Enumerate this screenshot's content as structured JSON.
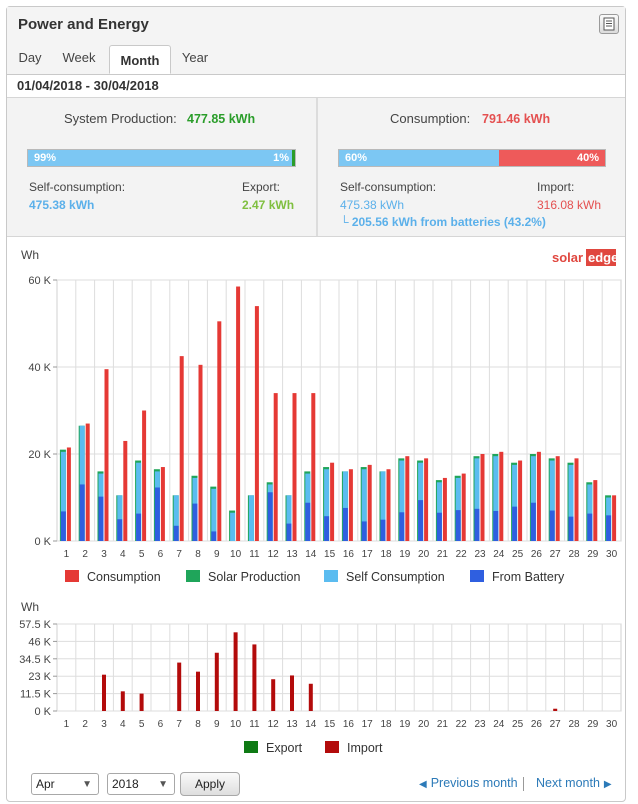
{
  "header": {
    "title": "Power and Energy",
    "report_icon": "report-icon"
  },
  "tabs": [
    {
      "label": "Day",
      "active": false
    },
    {
      "label": "Week",
      "active": false
    },
    {
      "label": "Month",
      "active": true
    },
    {
      "label": "Year",
      "active": false
    }
  ],
  "date_range": "01/04/2018 - 30/04/2018",
  "production": {
    "label": "System Production:",
    "value": "477.85 kWh",
    "bar_left_label": "99%",
    "bar_right_label": "1%",
    "bar_fraction": 0.99,
    "self_label": "Self-consumption:",
    "self_value": "475.38 kWh",
    "export_label": "Export:",
    "export_value": "2.47 kWh"
  },
  "consumption": {
    "label": "Consumption:",
    "value": "791.46 kWh",
    "bar_left_label": "60%",
    "bar_right_label": "40%",
    "bar_fraction": 0.6,
    "self_label": "Self-consumption:",
    "self_value": "475.38 kWh",
    "battery_note": "└ 205.56 kWh from batteries (43.2%)",
    "import_label": "Import:",
    "import_value": "316.08 kWh"
  },
  "brand": {
    "part1": "solar",
    "part2": "edge"
  },
  "colors": {
    "consumption": "#e53935",
    "solar_production": "#1fa55a",
    "self_consumption": "#5bbcf0",
    "from_battery": "#2f5fe0",
    "export": "#0e7a14",
    "import": "#b30b0b",
    "production_value": "#2a9d2a",
    "consumption_value": "#e45050",
    "link": "#2c7ab8"
  },
  "chart_data": [
    {
      "type": "bar",
      "ylabel": "Wh",
      "ylim": [
        0,
        60000
      ],
      "y_ticks": [
        "0 K",
        "20 K",
        "40 K",
        "60 K"
      ],
      "categories": [
        "1",
        "2",
        "3",
        "4",
        "5",
        "6",
        "7",
        "8",
        "9",
        "10",
        "11",
        "12",
        "13",
        "14",
        "15",
        "16",
        "17",
        "18",
        "19",
        "20",
        "21",
        "22",
        "23",
        "24",
        "25",
        "26",
        "27",
        "28",
        "29",
        "30"
      ],
      "series": [
        {
          "name": "Consumption",
          "values": [
            21500,
            27000,
            39500,
            23000,
            30000,
            17000,
            42500,
            40500,
            50500,
            58500,
            54000,
            34000,
            34000,
            34000,
            18000,
            16500,
            17500,
            16500,
            19500,
            19000,
            14500,
            15500,
            20000,
            20500,
            18500,
            20500,
            19500,
            19000,
            14000,
            10500
          ]
        },
        {
          "name": "Solar Production",
          "values": [
            21000,
            26500,
            16000,
            10500,
            18500,
            16500,
            10500,
            15000,
            12500,
            7000,
            10500,
            13500,
            10500,
            16000,
            17000,
            16000,
            17000,
            16000,
            19000,
            18500,
            14000,
            15000,
            19500,
            20000,
            18000,
            20000,
            19000,
            18000,
            13500,
            10500
          ]
        },
        {
          "name": "Self Consumption",
          "values": [
            20500,
            26500,
            15500,
            10500,
            18000,
            16000,
            10500,
            14500,
            12000,
            6500,
            10500,
            13000,
            10500,
            15500,
            16500,
            16000,
            16500,
            16000,
            18500,
            18000,
            13500,
            14500,
            19000,
            19500,
            17500,
            19500,
            18500,
            17500,
            13000,
            10000
          ]
        },
        {
          "name": "From Battery",
          "values": [
            6800,
            13000,
            10200,
            5000,
            6300,
            12300,
            3500,
            8600,
            2200,
            0,
            0,
            11200,
            4000,
            8800,
            5700,
            7600,
            4500,
            4900,
            6600,
            9400,
            6500,
            7100,
            7400,
            6900,
            7900,
            8800,
            7000,
            5600,
            6300,
            5900
          ]
        }
      ],
      "legend": "bottom"
    },
    {
      "type": "bar",
      "ylabel": "Wh",
      "ylim": [
        0,
        57500
      ],
      "y_ticks": [
        "0 K",
        "11.5 K",
        "23 K",
        "34.5 K",
        "46 K",
        "57.5 K"
      ],
      "categories": [
        "1",
        "2",
        "3",
        "4",
        "5",
        "6",
        "7",
        "8",
        "9",
        "10",
        "11",
        "12",
        "13",
        "14",
        "15",
        "16",
        "17",
        "18",
        "19",
        "20",
        "21",
        "22",
        "23",
        "24",
        "25",
        "26",
        "27",
        "28",
        "29",
        "30"
      ],
      "series": [
        {
          "name": "Export",
          "values": [
            0,
            0,
            0,
            0,
            0,
            0,
            0,
            0,
            0,
            0,
            0,
            0,
            0,
            0,
            0,
            0,
            0,
            0,
            0,
            0,
            0,
            0,
            0,
            0,
            0,
            0,
            0,
            0,
            0,
            0
          ]
        },
        {
          "name": "Import",
          "values": [
            0,
            0,
            24000,
            13000,
            11500,
            0,
            32000,
            26000,
            38500,
            52000,
            44000,
            21000,
            23500,
            18000,
            0,
            0,
            0,
            0,
            0,
            0,
            0,
            0,
            0,
            0,
            0,
            0,
            1500,
            0,
            0,
            0
          ]
        }
      ],
      "legend": "bottom"
    }
  ],
  "footer": {
    "month_value": "Apr",
    "year_value": "2018",
    "apply_label": "Apply",
    "prev_label": "Previous month",
    "next_label": "Next month"
  }
}
